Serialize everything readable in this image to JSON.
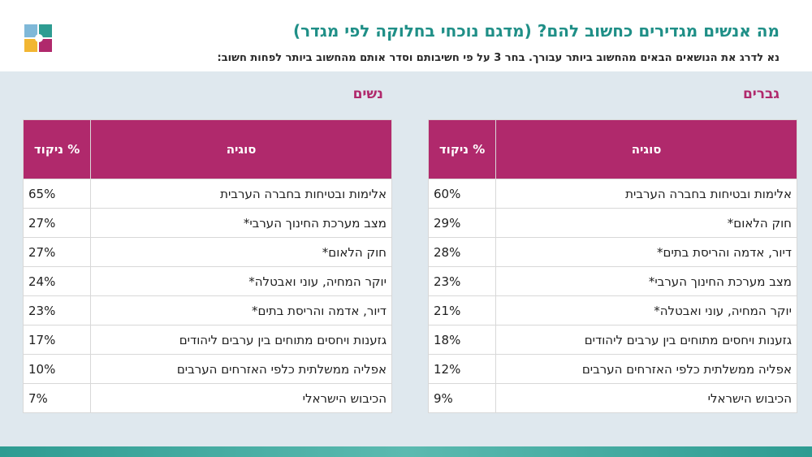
{
  "header": {
    "title": "מה אנשים מגדירים כחשוב להם? (מדגם נוכחי בחלוקה לפי מגדר)",
    "subtitle": "נא לדרג את הנושאים הבאים מהחשוב ביותר עבורך. בחר 3 על פי חשיבותם וסדר אותם מהחשוב ביותר לפחות חשוב:"
  },
  "colors": {
    "accent": "#b0296c",
    "title": "#1f8f87",
    "panel": "#dfe8ee"
  },
  "men": {
    "label": "גברים",
    "columns": {
      "topic": "סוגיה",
      "pct": "% ניקוד"
    },
    "rows": [
      {
        "topic": "אלימות ובטיחות בחברה הערבית",
        "pct": "60%"
      },
      {
        "topic": "חוק הלאום*",
        "pct": "29%"
      },
      {
        "topic": "דיור, אדמה והריסת בתים*",
        "pct": "28%"
      },
      {
        "topic": "מצב מערכת החינוך הערבי*",
        "pct": "23%"
      },
      {
        "topic": "יוקר המחיה, עוני ואבטלה*",
        "pct": "21%"
      },
      {
        "topic": "גזענות ויחסים מתוחים בין ערבים ליהודים",
        "pct": "18%"
      },
      {
        "topic": "אפליה ממשלתית כלפי האזרחים הערבים",
        "pct": "12%"
      },
      {
        "topic": "הכיבוש הישראלי",
        "pct": "9%"
      }
    ]
  },
  "women": {
    "label": "נשים",
    "columns": {
      "topic": "סוגיה",
      "pct": "% ניקוד"
    },
    "rows": [
      {
        "topic": "אלימות ובטיחות בחברה הערבית",
        "pct": "65%"
      },
      {
        "topic": "מצב מערכת החינוך הערבי*",
        "pct": "27%"
      },
      {
        "topic": "חוק הלאום*",
        "pct": "27%"
      },
      {
        "topic": "יוקר המחיה, עוני ואבטלה*",
        "pct": "24%"
      },
      {
        "topic": "דיור, אדמה והריסת בתים*",
        "pct": "23%"
      },
      {
        "topic": "גזענות ויחסים מתוחים בין ערבים ליהודים",
        "pct": "17%"
      },
      {
        "topic": "אפליה ממשלתית כלפי האזרחים הערבים",
        "pct": "10%"
      },
      {
        "topic": "הכיבוש הישראלי",
        "pct": "7%"
      }
    ]
  }
}
